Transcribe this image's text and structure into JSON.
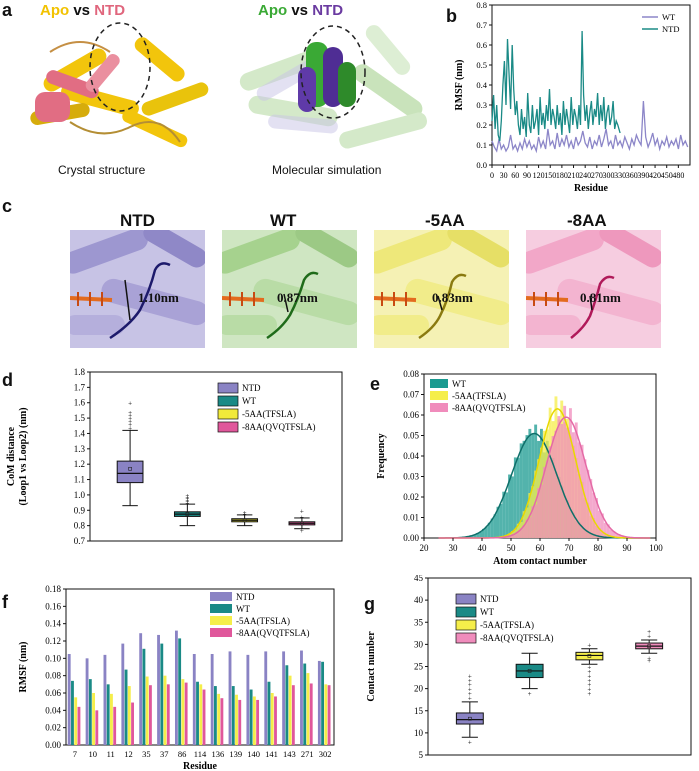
{
  "panel_a": {
    "label": "a",
    "left_title": {
      "apo": "Apo",
      "vs": " vs ",
      "ntd": "NTD"
    },
    "right_title": {
      "apo": "Apo",
      "vs": " vs ",
      "ntd": "NTD"
    },
    "left_caption": "Crystal structure",
    "right_caption": "Molecular simulation",
    "colors": {
      "apo_left": "#f2c200",
      "ntd_left": "#e0667d",
      "apo_right": "#3aa935",
      "ntd_right": "#6a3aa0"
    }
  },
  "panel_c": {
    "label": "c",
    "items": [
      {
        "title": "NTD",
        "distance": "1.10nm",
        "color": "#a9a2d6"
      },
      {
        "title": "WT",
        "distance": "0.87nm",
        "color": "#a6d28e"
      },
      {
        "title": "-5AA",
        "distance": "0.83nm",
        "color": "#f1ec8a"
      },
      {
        "title": "-8AA",
        "distance": "0.81nm",
        "color": "#f2a7c8"
      }
    ]
  },
  "chart_data": [
    {
      "panel": "b",
      "type": "line",
      "xlabel": "Residue",
      "ylabel": "RMSF (nm)",
      "xlim": [
        0,
        510
      ],
      "ylim": [
        0,
        0.8
      ],
      "xticks": [
        "0",
        "30",
        "60",
        "90",
        "120",
        "150",
        "180",
        "210",
        "240",
        "270",
        "300",
        "330",
        "360",
        "390",
        "420",
        "450",
        "480"
      ],
      "yticks": [
        "0.0",
        "0.1",
        "0.2",
        "0.3",
        "0.4",
        "0.5",
        "0.6",
        "0.7",
        "0.8"
      ],
      "legend_position": "top-right",
      "series": [
        {
          "name": "WT",
          "color": "#8c86c8",
          "x": [
            0,
            6,
            12,
            18,
            24,
            30,
            36,
            42,
            48,
            54,
            60,
            66,
            72,
            78,
            84,
            90,
            96,
            102,
            108,
            114,
            120,
            126,
            132,
            138,
            144,
            150,
            156,
            162,
            168,
            174,
            180,
            186,
            192,
            198,
            204,
            210,
            216,
            222,
            228,
            234,
            240,
            246,
            252,
            258,
            264,
            270,
            276,
            282,
            288,
            294,
            300,
            306,
            312,
            318,
            324,
            330,
            336,
            342,
            348,
            354,
            360,
            366,
            372,
            378,
            384,
            390,
            396,
            402,
            408,
            414,
            420,
            426,
            432,
            438,
            444,
            450,
            456,
            462,
            468,
            474,
            480,
            486,
            492,
            498,
            504
          ],
          "y": [
            0.12,
            0.09,
            0.07,
            0.13,
            0.08,
            0.1,
            0.07,
            0.09,
            0.15,
            0.08,
            0.1,
            0.07,
            0.11,
            0.08,
            0.13,
            0.09,
            0.12,
            0.08,
            0.1,
            0.07,
            0.14,
            0.09,
            0.12,
            0.08,
            0.18,
            0.1,
            0.12,
            0.08,
            0.16,
            0.09,
            0.13,
            0.1,
            0.15,
            0.09,
            0.12,
            0.08,
            0.14,
            0.1,
            0.12,
            0.17,
            0.11,
            0.09,
            0.14,
            0.08,
            0.12,
            0.1,
            0.15,
            0.09,
            0.13,
            0.18,
            0.1,
            0.12,
            0.08,
            0.15,
            0.1,
            0.12,
            0.09,
            0.14,
            0.11,
            0.08,
            0.13,
            0.1,
            0.15,
            0.12,
            0.1,
            0.32,
            0.14,
            0.09,
            0.12,
            0.16,
            0.1,
            0.13,
            0.08,
            0.12,
            0.1,
            0.14,
            0.09,
            0.12,
            0.1,
            0.13,
            0.08,
            0.15,
            0.1,
            0.12,
            0.09
          ]
        },
        {
          "name": "NTD",
          "color": "#1a8a86",
          "x": [
            0,
            4,
            8,
            12,
            16,
            20,
            24,
            28,
            32,
            36,
            40,
            44,
            48,
            52,
            56,
            60,
            64,
            68,
            72,
            76,
            80,
            84,
            88,
            92,
            96,
            100,
            104,
            108,
            112,
            116,
            120,
            124,
            128,
            132,
            136,
            140,
            144,
            148,
            152,
            156,
            160,
            164,
            168,
            172,
            176,
            180,
            184,
            188,
            192,
            196,
            200,
            204,
            208,
            212,
            216,
            220,
            224,
            228,
            232,
            236,
            240,
            244,
            248,
            252,
            256,
            260,
            264,
            268,
            272,
            276,
            280,
            284,
            288,
            292,
            296,
            300,
            304,
            308,
            312,
            316,
            320,
            324,
            330
          ],
          "y": [
            0.22,
            0.35,
            0.18,
            0.3,
            0.15,
            0.12,
            0.22,
            0.4,
            0.52,
            0.3,
            0.63,
            0.45,
            0.28,
            0.6,
            0.38,
            0.25,
            0.32,
            0.2,
            0.15,
            0.28,
            0.18,
            0.24,
            0.14,
            0.36,
            0.2,
            0.16,
            0.3,
            0.18,
            0.22,
            0.28,
            0.15,
            0.34,
            0.2,
            0.26,
            0.18,
            0.3,
            0.22,
            0.38,
            0.2,
            0.28,
            0.24,
            0.18,
            0.3,
            0.2,
            0.26,
            0.15,
            0.32,
            0.2,
            0.28,
            0.22,
            0.16,
            0.34,
            0.2,
            0.28,
            0.24,
            0.18,
            0.3,
            0.2,
            0.67,
            0.35,
            0.22,
            0.3,
            0.18,
            0.26,
            0.32,
            0.2,
            0.28,
            0.24,
            0.36,
            0.2,
            0.3,
            0.22,
            0.34,
            0.18,
            0.26,
            0.3,
            0.2,
            0.24,
            0.32,
            0.18,
            0.22,
            0.2,
            0.16
          ]
        }
      ]
    },
    {
      "panel": "d",
      "type": "box",
      "ylabel": "CoM distance (Loop1 vs Loop2) (nm)",
      "ylabel_lines": [
        "CoM distance",
        "(Loop1 vs Loop2) (nm)"
      ],
      "ylim": [
        0.7,
        1.8
      ],
      "yticks": [
        "0.7",
        "0.8",
        "0.9",
        "1.0",
        "1.1",
        "1.2",
        "1.3",
        "1.4",
        "1.5",
        "1.6",
        "1.7",
        "1.8"
      ],
      "legend_position": "top-right",
      "series": [
        {
          "name": "NTD",
          "color": "#8a83c4",
          "q1": 1.08,
          "median": 1.14,
          "q3": 1.22,
          "min": 0.93,
          "max": 1.42,
          "mean": 1.17,
          "outliers": [
            1.44,
            1.46,
            1.48,
            1.5,
            1.52,
            1.54,
            1.6
          ]
        },
        {
          "name": "WT",
          "color": "#1a8a86",
          "q1": 0.86,
          "median": 0.875,
          "q3": 0.89,
          "min": 0.8,
          "max": 0.94,
          "mean": 0.875,
          "outliers": [
            0.95,
            0.96,
            0.97,
            0.98,
            0.99,
            1.0
          ]
        },
        {
          "name": "-5AA(TFSLA)",
          "color": "#f1ea3a",
          "q1": 0.825,
          "median": 0.835,
          "q3": 0.845,
          "min": 0.8,
          "max": 0.87,
          "mean": 0.835,
          "outliers": [
            0.88,
            0.89
          ]
        },
        {
          "name": "-8AA(QVQTFSLA)",
          "color": "#e0579b",
          "q1": 0.805,
          "median": 0.815,
          "q3": 0.825,
          "min": 0.78,
          "max": 0.85,
          "mean": 0.815,
          "outliers": [
            0.77,
            0.86,
            0.9
          ]
        }
      ]
    },
    {
      "panel": "e",
      "type": "histogram",
      "xlabel": "Atom contact number",
      "ylabel": "Frequency",
      "xlim": [
        20,
        100
      ],
      "ylim": [
        0,
        0.08
      ],
      "xticks": [
        "20",
        "30",
        "40",
        "50",
        "60",
        "70",
        "80",
        "90",
        "100"
      ],
      "yticks": [
        "0.00",
        "0.01",
        "0.02",
        "0.03",
        "0.04",
        "0.05",
        "0.06",
        "0.07",
        "0.08"
      ],
      "legend_position": "top-left",
      "series": [
        {
          "name": "WT",
          "color": "#1a9a90",
          "mean": 58,
          "sd": 7.8,
          "peak": 0.051
        },
        {
          "name": "-5AA(TFSLA)",
          "color": "#f5ee4a",
          "mean": 66,
          "sd": 6.3,
          "peak": 0.063
        },
        {
          "name": "-8AA(QVQTFSLA)",
          "color": "#f08cbc",
          "mean": 69,
          "sd": 6.8,
          "peak": 0.059
        }
      ]
    },
    {
      "panel": "f",
      "type": "bar",
      "xlabel": "Residue",
      "ylabel": "RMSF (nm)",
      "ylim": [
        0,
        0.18
      ],
      "yticks": [
        "0.00",
        "0.02",
        "0.04",
        "0.06",
        "0.08",
        "0.10",
        "0.12",
        "0.14",
        "0.16",
        "0.18"
      ],
      "legend_position": "top-right",
      "categories": [
        "7",
        "10",
        "11",
        "12",
        "35",
        "37",
        "86",
        "114",
        "136",
        "139",
        "140",
        "141",
        "143",
        "271",
        "302"
      ],
      "series": [
        {
          "name": "NTD",
          "color": "#8a83c4",
          "values": [
            0.105,
            0.1,
            0.104,
            0.117,
            0.129,
            0.127,
            0.132,
            0.105,
            0.105,
            0.108,
            0.104,
            0.108,
            0.108,
            0.109,
            0.097
          ]
        },
        {
          "name": "WT",
          "color": "#1a8a86",
          "values": [
            0.074,
            0.076,
            0.07,
            0.087,
            0.111,
            0.117,
            0.123,
            0.073,
            0.068,
            0.068,
            0.064,
            0.073,
            0.092,
            0.094,
            0.096
          ]
        },
        {
          "name": "-5AA(TFSLA)",
          "color": "#f5ee4a",
          "values": [
            0.055,
            0.06,
            0.059,
            0.068,
            0.079,
            0.08,
            0.076,
            0.07,
            0.059,
            0.058,
            0.056,
            0.06,
            0.08,
            0.083,
            0.07
          ]
        },
        {
          "name": "-8AA(QVQTFSLA)",
          "color": "#e0579b",
          "values": [
            0.044,
            0.04,
            0.044,
            0.049,
            0.069,
            0.07,
            0.072,
            0.064,
            0.054,
            0.052,
            0.052,
            0.056,
            0.069,
            0.071,
            0.069
          ]
        }
      ]
    },
    {
      "panel": "g",
      "type": "box",
      "ylabel": "Contact number",
      "ylim": [
        5,
        45
      ],
      "yticks": [
        "5",
        "10",
        "15",
        "20",
        "25",
        "30",
        "35",
        "40",
        "45"
      ],
      "legend_position": "top-left",
      "series": [
        {
          "name": "NTD",
          "color": "#8a83c4",
          "q1": 12,
          "median": 13,
          "q3": 14.5,
          "min": 9,
          "max": 17,
          "mean": 13.2,
          "outliers": [
            8,
            18,
            19,
            20,
            21,
            22,
            23
          ]
        },
        {
          "name": "WT",
          "color": "#1a8a86",
          "q1": 22.5,
          "median": 24,
          "q3": 25.5,
          "min": 20,
          "max": 28,
          "mean": 24,
          "outliers": [
            19
          ]
        },
        {
          "name": "-5AA(TFSLA)",
          "color": "#f5ee4a",
          "q1": 26.5,
          "median": 27.5,
          "q3": 28.2,
          "min": 25.5,
          "max": 29,
          "mean": 27.4,
          "outliers": [
            19,
            20,
            21,
            22,
            23,
            24,
            25,
            30
          ]
        },
        {
          "name": "-8AA(QVQTFSLA)",
          "color": "#f08cbc",
          "q1": 29,
          "median": 29.6,
          "q3": 30.3,
          "min": 28,
          "max": 31,
          "mean": 29.6,
          "outliers": [
            26.5,
            27,
            32,
            33
          ]
        }
      ]
    }
  ],
  "labels": {
    "b": "b",
    "d": "d",
    "e": "e",
    "f": "f",
    "g": "g"
  }
}
